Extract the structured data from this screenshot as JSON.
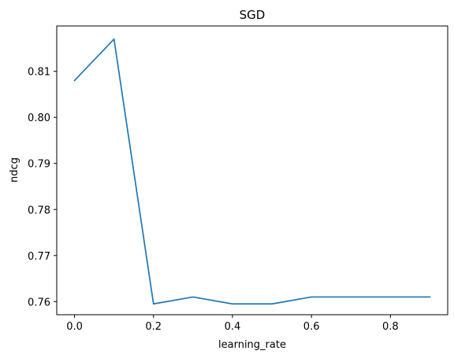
{
  "chart_data": {
    "type": "line",
    "title": "SGD",
    "xlabel": "learning_rate",
    "ylabel": "ndcg",
    "x": [
      0.0,
      0.1,
      0.2,
      0.3,
      0.4,
      0.5,
      0.6,
      0.7,
      0.8,
      0.9
    ],
    "series": [
      {
        "values": [
          0.808,
          0.817,
          0.7595,
          0.761,
          0.7595,
          0.7595,
          0.761,
          0.761,
          0.761,
          0.761
        ],
        "color": "#1f77b4"
      }
    ],
    "xticks": [
      0.0,
      0.2,
      0.4,
      0.6,
      0.8
    ],
    "xtick_labels": [
      "0.0",
      "0.2",
      "0.4",
      "0.6",
      "0.8"
    ],
    "yticks": [
      0.76,
      0.77,
      0.78,
      0.79,
      0.8,
      0.81
    ],
    "ytick_labels": [
      "0.76",
      "0.77",
      "0.78",
      "0.79",
      "0.80",
      "0.81"
    ],
    "xlim": [
      -0.045,
      0.945
    ],
    "ylim": [
      0.75715,
      0.81985
    ],
    "grid": false,
    "legend": "none"
  }
}
